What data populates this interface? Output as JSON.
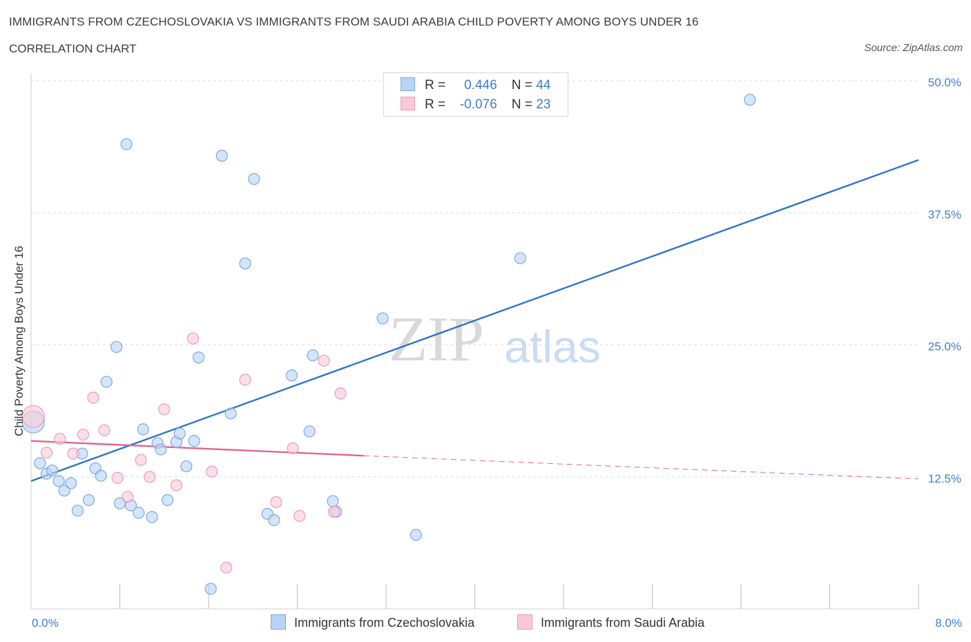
{
  "title": "IMMIGRANTS FROM CZECHOSLOVAKIA VS IMMIGRANTS FROM SAUDI ARABIA CHILD POVERTY AMONG BOYS UNDER 16",
  "subtitle": "CORRELATION CHART",
  "source": "Source: ZipAtlas.com",
  "watermark": {
    "zip": "ZIP",
    "atlas": "atlas"
  },
  "legend_top": [
    {
      "r_label": "R =",
      "r_value": "0.446",
      "n_label": "N =",
      "n_value": "44"
    },
    {
      "r_label": "R =",
      "r_value": "-0.076",
      "n_label": "N =",
      "n_value": "23"
    }
  ],
  "legend_bottom": [
    {
      "label": "Immigrants from Czechoslovakia"
    },
    {
      "label": "Immigrants from Saudi Arabia"
    }
  ],
  "colors": {
    "blue_fill": "#b9d3f5",
    "blue_stroke": "#7aa8e0",
    "blue_line": "#2f72d0",
    "pink_fill": "#f8c9d7",
    "pink_stroke": "#ea9bb4",
    "pink_line": "#e0648f",
    "axis_text": "#3b7dd8",
    "grid": "#dcdcdc"
  },
  "chart_data": {
    "type": "scatter",
    "xlabel": "",
    "ylabel": "Child Poverty Among Boys Under 16",
    "xlim": [
      0,
      8
    ],
    "ylim": [
      0,
      50
    ],
    "x_tick_labels": [
      "0.0%",
      "8.0%"
    ],
    "y_tick_values": [
      12.5,
      25.0,
      37.5,
      50.0
    ],
    "y_tick_labels": [
      "12.5%",
      "25.0%",
      "37.5%",
      "50.0%"
    ],
    "series": [
      {
        "name": "Immigrants from Czechoslovakia",
        "color": "blue",
        "points": [
          {
            "x": 0.02,
            "y": 17.7,
            "big": true
          },
          {
            "x": 0.08,
            "y": 13.8
          },
          {
            "x": 0.14,
            "y": 12.8
          },
          {
            "x": 0.19,
            "y": 13.1
          },
          {
            "x": 0.25,
            "y": 12.1
          },
          {
            "x": 0.3,
            "y": 11.2
          },
          {
            "x": 0.36,
            "y": 11.9
          },
          {
            "x": 0.42,
            "y": 9.3
          },
          {
            "x": 0.46,
            "y": 14.7
          },
          {
            "x": 0.52,
            "y": 10.3
          },
          {
            "x": 0.58,
            "y": 13.3
          },
          {
            "x": 0.63,
            "y": 12.6
          },
          {
            "x": 0.68,
            "y": 21.5
          },
          {
            "x": 0.77,
            "y": 24.8
          },
          {
            "x": 0.8,
            "y": 10.0
          },
          {
            "x": 0.86,
            "y": 44.0
          },
          {
            "x": 0.9,
            "y": 9.8
          },
          {
            "x": 0.97,
            "y": 9.1
          },
          {
            "x": 1.01,
            "y": 17.0
          },
          {
            "x": 1.09,
            "y": 8.7
          },
          {
            "x": 1.14,
            "y": 15.7
          },
          {
            "x": 1.17,
            "y": 15.1
          },
          {
            "x": 1.23,
            "y": 10.3
          },
          {
            "x": 1.31,
            "y": 15.8
          },
          {
            "x": 1.34,
            "y": 16.6
          },
          {
            "x": 1.4,
            "y": 13.5
          },
          {
            "x": 1.47,
            "y": 15.9
          },
          {
            "x": 1.51,
            "y": 23.8
          },
          {
            "x": 1.62,
            "y": 1.9
          },
          {
            "x": 1.72,
            "y": 42.9
          },
          {
            "x": 1.8,
            "y": 18.5
          },
          {
            "x": 1.93,
            "y": 32.7
          },
          {
            "x": 2.01,
            "y": 40.7
          },
          {
            "x": 2.13,
            "y": 9.0
          },
          {
            "x": 2.19,
            "y": 8.4
          },
          {
            "x": 2.35,
            "y": 22.1
          },
          {
            "x": 2.51,
            "y": 16.8
          },
          {
            "x": 2.54,
            "y": 24.0
          },
          {
            "x": 2.72,
            "y": 10.2
          },
          {
            "x": 2.75,
            "y": 9.2
          },
          {
            "x": 3.17,
            "y": 27.5
          },
          {
            "x": 3.47,
            "y": 7.0
          },
          {
            "x": 4.41,
            "y": 33.2
          },
          {
            "x": 6.48,
            "y": 48.2
          }
        ]
      },
      {
        "name": "Immigrants from Saudi Arabia",
        "color": "pink",
        "points": [
          {
            "x": 0.02,
            "y": 18.2,
            "big": true
          },
          {
            "x": 0.14,
            "y": 14.8
          },
          {
            "x": 0.26,
            "y": 16.1
          },
          {
            "x": 0.38,
            "y": 14.7
          },
          {
            "x": 0.47,
            "y": 16.5
          },
          {
            "x": 0.56,
            "y": 20.0
          },
          {
            "x": 0.66,
            "y": 16.9
          },
          {
            "x": 0.78,
            "y": 12.4
          },
          {
            "x": 0.87,
            "y": 10.6
          },
          {
            "x": 0.99,
            "y": 14.1
          },
          {
            "x": 1.07,
            "y": 12.5
          },
          {
            "x": 1.2,
            "y": 18.9
          },
          {
            "x": 1.31,
            "y": 11.7
          },
          {
            "x": 1.46,
            "y": 25.6
          },
          {
            "x": 1.63,
            "y": 13.0
          },
          {
            "x": 1.76,
            "y": 3.9
          },
          {
            "x": 1.93,
            "y": 21.7
          },
          {
            "x": 2.21,
            "y": 10.1
          },
          {
            "x": 2.36,
            "y": 15.2
          },
          {
            "x": 2.42,
            "y": 8.8
          },
          {
            "x": 2.64,
            "y": 23.5
          },
          {
            "x": 2.73,
            "y": 9.2
          },
          {
            "x": 2.79,
            "y": 20.4
          }
        ]
      }
    ],
    "trend_lines": [
      {
        "series": "Immigrants from Czechoslovakia",
        "x0": 0.0,
        "y0": 12.1,
        "x1": 8.0,
        "y1": 42.5,
        "style": "solid"
      },
      {
        "series": "Immigrants from Saudi Arabia",
        "x0": 0.0,
        "y0": 15.9,
        "x1": 3.0,
        "y1": 14.5,
        "style": "solid"
      },
      {
        "series": "Immigrants from Saudi Arabia",
        "x0": 3.0,
        "y0": 14.5,
        "x1": 8.0,
        "y1": 12.3,
        "style": "dashed"
      }
    ]
  }
}
